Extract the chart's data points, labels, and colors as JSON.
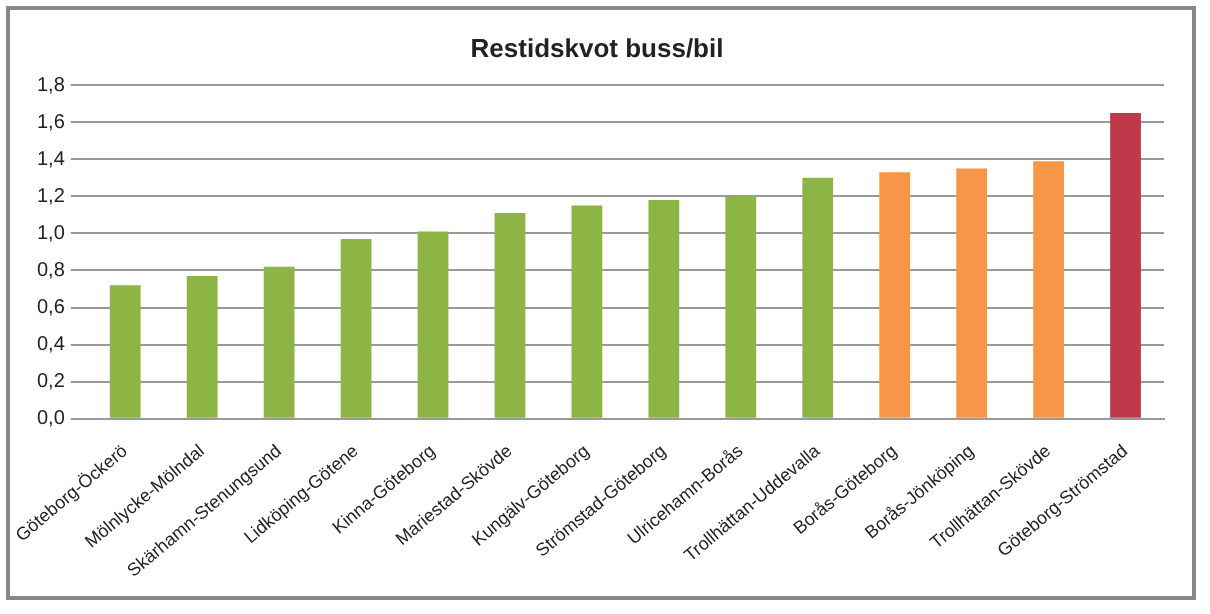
{
  "chart_data": {
    "type": "bar",
    "title": "Restidskvot buss/bil",
    "categories": [
      "Göteborg-Öckerö",
      "Mölnlycke-Mölndal",
      "Skärhamn-Stenungsund",
      "Lidköping-Götene",
      "Kinna-Göteborg",
      "Mariestad-Skövde",
      "Kungälv-Göteborg",
      "Strömstad-Göteborg",
      "Ulricehamn-Borås",
      "Trollhättan-Uddevalla",
      "Borås-Göteborg",
      "Borås-Jönköping",
      "Trollhättan-Skövde",
      "Göteborg-Strömstad"
    ],
    "values": [
      0.72,
      0.77,
      0.82,
      0.97,
      1.01,
      1.11,
      1.15,
      1.18,
      1.2,
      1.3,
      1.33,
      1.35,
      1.39,
      1.65
    ],
    "colors": [
      "#8db545",
      "#8db545",
      "#8db545",
      "#8db545",
      "#8db545",
      "#8db545",
      "#8db545",
      "#8db545",
      "#8db545",
      "#8db545",
      "#f79646",
      "#f79646",
      "#f79646",
      "#c0394b"
    ],
    "ylim": [
      0,
      1.8
    ],
    "yticks": [
      {
        "value": 0,
        "label": "0,0"
      },
      {
        "value": 0.2,
        "label": "0,2"
      },
      {
        "value": 0.4,
        "label": "0,4"
      },
      {
        "value": 0.6,
        "label": "0,6"
      },
      {
        "value": 0.8,
        "label": "0,8"
      },
      {
        "value": 1,
        "label": "1,0"
      },
      {
        "value": 1.2,
        "label": "1,2"
      },
      {
        "value": 1.4,
        "label": "1,4"
      },
      {
        "value": 1.6,
        "label": "1,6"
      },
      {
        "value": 1.8,
        "label": "1,8"
      }
    ],
    "grid": "y"
  }
}
